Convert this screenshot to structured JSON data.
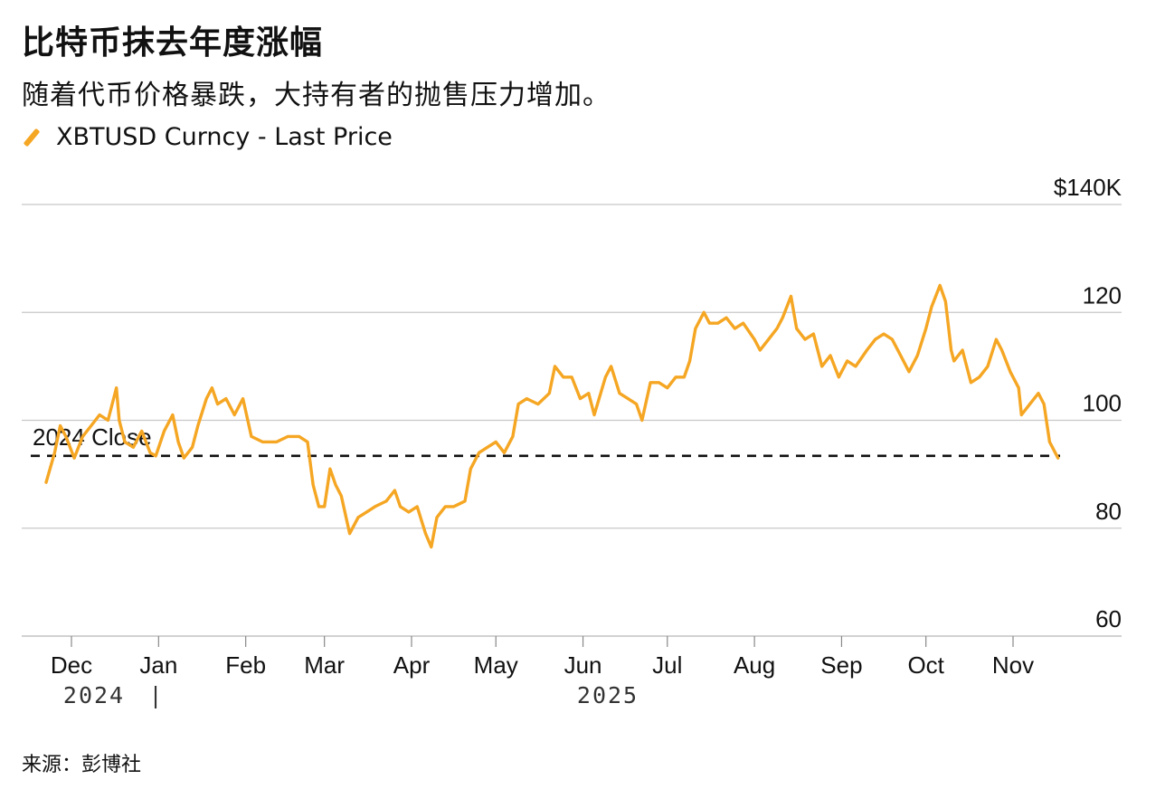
{
  "title": "比特币抹去年度涨幅",
  "subtitle": "随着代币价格暴跌，大持有者的抛售压力增加。",
  "legend": "XBTUSD Curncy - Last Price",
  "source": "来源：彭博社",
  "colors": {
    "line": "#f5a623",
    "grid": "#c8c8c8",
    "reference": "#111111"
  },
  "chart_data": {
    "type": "line",
    "title": "比特币抹去年度涨幅",
    "subtitle": "随着代币价格暴跌，大持有者的抛售压力增加。",
    "ylim": [
      60,
      140
    ],
    "y_ticks": [
      60,
      80,
      100,
      120,
      140
    ],
    "y_tick_labels": [
      "60",
      "80",
      "100",
      "120",
      "$140K"
    ],
    "y_unit": "USD thousands",
    "grid": "horizontal",
    "x_tick_labels": [
      "Dec",
      "Jan",
      "Feb",
      "Mar",
      "Apr",
      "May",
      "Jun",
      "Jul",
      "Aug",
      "Sep",
      "Oct",
      "Nov"
    ],
    "x_tick_dates": [
      "2024-12-01",
      "2025-01-01",
      "2025-02-01",
      "2025-03-01",
      "2025-04-01",
      "2025-05-01",
      "2025-06-01",
      "2025-07-01",
      "2025-08-01",
      "2025-09-01",
      "2025-10-01",
      "2025-11-01"
    ],
    "year_labels": [
      "2024",
      "2025"
    ],
    "reference_line": {
      "label": "2024 Close",
      "value": 93.4
    },
    "series": [
      {
        "name": "XBTUSD Curncy - Last Price",
        "points": [
          [
            "2024-11-22",
            88.5
          ],
          [
            "2024-11-25",
            94
          ],
          [
            "2024-11-27",
            99
          ],
          [
            "2024-11-29",
            97
          ],
          [
            "2024-12-02",
            93
          ],
          [
            "2024-12-05",
            97
          ],
          [
            "2024-12-08",
            99
          ],
          [
            "2024-12-11",
            101
          ],
          [
            "2024-12-14",
            100
          ],
          [
            "2024-12-17",
            106
          ],
          [
            "2024-12-18",
            100
          ],
          [
            "2024-12-20",
            96
          ],
          [
            "2024-12-23",
            95
          ],
          [
            "2024-12-26",
            98
          ],
          [
            "2024-12-29",
            94
          ],
          [
            "2024-12-31",
            93.4
          ],
          [
            "2025-01-03",
            98
          ],
          [
            "2025-01-06",
            101
          ],
          [
            "2025-01-08",
            96
          ],
          [
            "2025-01-10",
            93
          ],
          [
            "2025-01-13",
            95
          ],
          [
            "2025-01-15",
            99
          ],
          [
            "2025-01-18",
            104
          ],
          [
            "2025-01-20",
            106
          ],
          [
            "2025-01-22",
            103
          ],
          [
            "2025-01-25",
            104
          ],
          [
            "2025-01-28",
            101
          ],
          [
            "2025-01-31",
            104
          ],
          [
            "2025-02-03",
            97
          ],
          [
            "2025-02-07",
            96
          ],
          [
            "2025-02-12",
            96
          ],
          [
            "2025-02-16",
            97
          ],
          [
            "2025-02-20",
            97
          ],
          [
            "2025-02-23",
            96
          ],
          [
            "2025-02-25",
            88
          ],
          [
            "2025-02-27",
            84
          ],
          [
            "2025-03-01",
            84
          ],
          [
            "2025-03-03",
            91
          ],
          [
            "2025-03-05",
            88
          ],
          [
            "2025-03-07",
            86
          ],
          [
            "2025-03-10",
            79
          ],
          [
            "2025-03-13",
            82
          ],
          [
            "2025-03-16",
            83
          ],
          [
            "2025-03-19",
            84
          ],
          [
            "2025-03-23",
            85
          ],
          [
            "2025-03-26",
            87
          ],
          [
            "2025-03-28",
            84
          ],
          [
            "2025-03-31",
            83
          ],
          [
            "2025-04-03",
            84
          ],
          [
            "2025-04-06",
            79
          ],
          [
            "2025-04-08",
            76.5
          ],
          [
            "2025-04-10",
            82
          ],
          [
            "2025-04-13",
            84
          ],
          [
            "2025-04-16",
            84
          ],
          [
            "2025-04-20",
            85
          ],
          [
            "2025-04-22",
            91
          ],
          [
            "2025-04-25",
            94
          ],
          [
            "2025-04-28",
            95
          ],
          [
            "2025-05-01",
            96
          ],
          [
            "2025-05-04",
            94
          ],
          [
            "2025-05-07",
            97
          ],
          [
            "2025-05-09",
            103
          ],
          [
            "2025-05-12",
            104
          ],
          [
            "2025-05-16",
            103
          ],
          [
            "2025-05-20",
            105
          ],
          [
            "2025-05-22",
            110
          ],
          [
            "2025-05-25",
            108
          ],
          [
            "2025-05-28",
            108
          ],
          [
            "2025-05-31",
            104
          ],
          [
            "2025-06-03",
            105
          ],
          [
            "2025-06-05",
            101
          ],
          [
            "2025-06-09",
            108
          ],
          [
            "2025-06-11",
            110
          ],
          [
            "2025-06-14",
            105
          ],
          [
            "2025-06-17",
            104
          ],
          [
            "2025-06-20",
            103
          ],
          [
            "2025-06-22",
            100
          ],
          [
            "2025-06-25",
            107
          ],
          [
            "2025-06-28",
            107
          ],
          [
            "2025-07-01",
            106
          ],
          [
            "2025-07-04",
            108
          ],
          [
            "2025-07-07",
            108
          ],
          [
            "2025-07-09",
            111
          ],
          [
            "2025-07-11",
            117
          ],
          [
            "2025-07-14",
            120
          ],
          [
            "2025-07-16",
            118
          ],
          [
            "2025-07-19",
            118
          ],
          [
            "2025-07-22",
            119
          ],
          [
            "2025-07-25",
            117
          ],
          [
            "2025-07-28",
            118
          ],
          [
            "2025-08-01",
            115
          ],
          [
            "2025-08-03",
            113
          ],
          [
            "2025-08-06",
            115
          ],
          [
            "2025-08-09",
            117
          ],
          [
            "2025-08-11",
            119
          ],
          [
            "2025-08-14",
            123
          ],
          [
            "2025-08-16",
            117
          ],
          [
            "2025-08-19",
            115
          ],
          [
            "2025-08-22",
            116
          ],
          [
            "2025-08-25",
            110
          ],
          [
            "2025-08-28",
            112
          ],
          [
            "2025-08-31",
            108
          ],
          [
            "2025-09-03",
            111
          ],
          [
            "2025-09-06",
            110
          ],
          [
            "2025-09-10",
            113
          ],
          [
            "2025-09-13",
            115
          ],
          [
            "2025-09-16",
            116
          ],
          [
            "2025-09-19",
            115
          ],
          [
            "2025-09-22",
            112
          ],
          [
            "2025-09-25",
            109
          ],
          [
            "2025-09-28",
            112
          ],
          [
            "2025-10-01",
            117
          ],
          [
            "2025-10-03",
            121
          ],
          [
            "2025-10-06",
            125
          ],
          [
            "2025-10-08",
            122
          ],
          [
            "2025-10-10",
            113
          ],
          [
            "2025-10-11",
            111
          ],
          [
            "2025-10-14",
            113
          ],
          [
            "2025-10-17",
            107
          ],
          [
            "2025-10-20",
            108
          ],
          [
            "2025-10-23",
            110
          ],
          [
            "2025-10-26",
            115
          ],
          [
            "2025-10-28",
            113
          ],
          [
            "2025-10-31",
            109
          ],
          [
            "2025-11-03",
            106
          ],
          [
            "2025-11-04",
            101
          ],
          [
            "2025-11-07",
            103
          ],
          [
            "2025-11-10",
            105
          ],
          [
            "2025-11-12",
            103
          ],
          [
            "2025-11-14",
            96
          ],
          [
            "2025-11-17",
            93
          ]
        ]
      }
    ]
  }
}
